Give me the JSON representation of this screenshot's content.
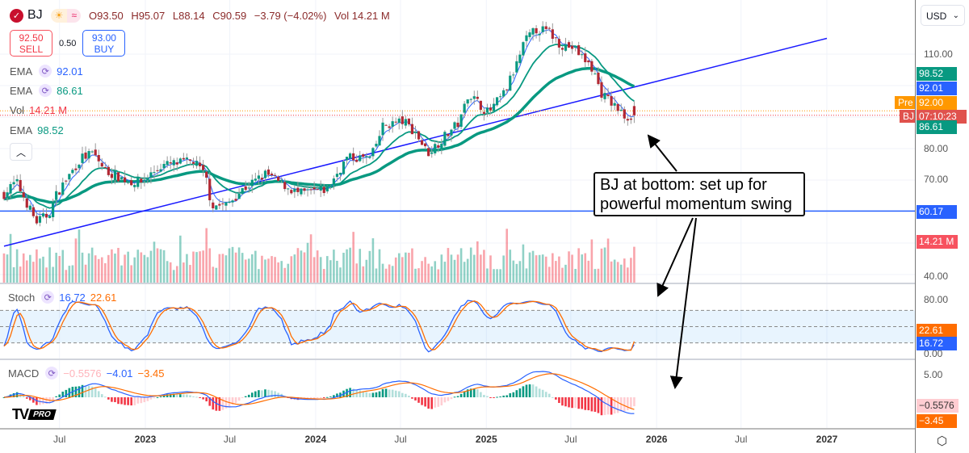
{
  "header": {
    "symbol": "BJ",
    "logo_icon": "check-circle-icon",
    "badges": [
      "☀",
      "≈"
    ],
    "open": "O93.50",
    "high": "H95.07",
    "low": "L88.14",
    "close": "C90.59",
    "change": "−3.79 (−4.02%)",
    "volume": "Vol 14.21 M"
  },
  "trade": {
    "sell_price": "92.50",
    "sell_label": "SELL",
    "spread": "0.50",
    "buy_price": "93.00",
    "buy_label": "BUY"
  },
  "legend": {
    "ema1_label": "EMA",
    "ema1_value": "92.01",
    "ema2_label": "EMA",
    "ema2_value": "86.61",
    "vol_label": "Vol",
    "vol_value": "14.21 M",
    "ema3_label": "EMA",
    "ema3_value": "98.52",
    "stoch_label": "Stoch",
    "stoch_k": "16.72",
    "stoch_d": "22.61",
    "macd_label": "MACD",
    "macd_hist": "−0.5576",
    "macd_line": "−4.01",
    "macd_signal": "−3.45"
  },
  "axis": {
    "currency": "USD",
    "price_ticks": [
      "110.00",
      "80.00",
      "70.00",
      "40.00"
    ],
    "stoch_ticks": [
      "80.00",
      "0.00"
    ],
    "macd_ticks": [
      "5.00"
    ],
    "labels": {
      "ema3": "98.52",
      "ema1": "92.01",
      "pre_tag": "Pre",
      "pre": "92.00",
      "bj_tag": "BJ",
      "countdown": "07:10:23",
      "ema2": "86.61",
      "hline": "60.17",
      "volume": "14.21 M",
      "stoch_d": "22.61",
      "stoch_k": "16.72",
      "macd_hist": "−0.5576",
      "macd_signal": "−3.45"
    },
    "time_labels": [
      {
        "text": "Jul",
        "year": false,
        "date": "2022-07-01"
      },
      {
        "text": "2023",
        "year": true,
        "date": "2023-01-01"
      },
      {
        "text": "Jul",
        "year": false,
        "date": "2023-07-01"
      },
      {
        "text": "2024",
        "year": true,
        "date": "2024-01-01"
      },
      {
        "text": "Jul",
        "year": false,
        "date": "2024-07-01"
      },
      {
        "text": "2025",
        "year": true,
        "date": "2025-01-01"
      },
      {
        "text": "Jul",
        "year": false,
        "date": "2025-07-01"
      },
      {
        "text": "2026",
        "year": true,
        "date": "2026-01-01"
      },
      {
        "text": "Jul",
        "year": false,
        "date": "2026-07-01"
      },
      {
        "text": "2027",
        "year": true,
        "date": "2027-01-01"
      }
    ]
  },
  "annotation": {
    "line1": "BJ at bottom: set up for",
    "line2": "powerful momentum swing"
  },
  "watermark": {
    "mark": "TV",
    "pro": "PRO"
  },
  "colors": {
    "up": "#089981",
    "down": "#b22833",
    "ema_fast": "#2962ff",
    "ema_mid": "#089981",
    "trend_line": "#1a1aff",
    "hline": "#2962ff",
    "stoch_k": "#2962ff",
    "stoch_d": "#ff6d00",
    "macd_line": "#2962ff",
    "macd_signal": "#ff6d00"
  },
  "chart_data": {
    "type": "candlestick",
    "interval": "weekly",
    "y_scale": "linear",
    "ylim": [
      40,
      118
    ],
    "last_candle": {
      "open": 93.5,
      "high": 95.07,
      "low": 88.14,
      "close": 90.59,
      "volume_m": 14.21
    },
    "close_path": [
      [
        "2022-03-04",
        65.6
      ],
      [
        "2022-03-30",
        69.5
      ],
      [
        "2022-05-12",
        56.7
      ],
      [
        "2022-06-07",
        59
      ],
      [
        "2022-06-25",
        65.6
      ],
      [
        "2022-08-16",
        77
      ],
      [
        "2022-09-11",
        78.5
      ],
      [
        "2022-10-07",
        73
      ],
      [
        "2022-11-27",
        69.5
      ],
      [
        "2022-12-23",
        69.5
      ],
      [
        "2023-02-05",
        74.6
      ],
      [
        "2023-04-15",
        76
      ],
      [
        "2023-05-11",
        70.8
      ],
      [
        "2023-05-23",
        62
      ],
      [
        "2023-06-23",
        62
      ],
      [
        "2023-07-28",
        67
      ],
      [
        "2023-09-17",
        72
      ],
      [
        "2023-10-13",
        69.5
      ],
      [
        "2023-11-26",
        65.6
      ],
      [
        "2024-01-25",
        67
      ],
      [
        "2024-03-08",
        77
      ],
      [
        "2024-04-29",
        77
      ],
      [
        "2024-05-25",
        87.4
      ],
      [
        "2024-07-08",
        88.7
      ],
      [
        "2024-08-03",
        84.9
      ],
      [
        "2024-08-28",
        78.5
      ],
      [
        "2024-09-23",
        82.3
      ],
      [
        "2024-11-06",
        88.7
      ],
      [
        "2024-11-23",
        97.7
      ],
      [
        "2024-12-19",
        93.8
      ],
      [
        "2025-01-05",
        91.3
      ],
      [
        "2025-02-09",
        97.7
      ],
      [
        "2025-03-07",
        106.7
      ],
      [
        "2025-03-24",
        114
      ],
      [
        "2025-04-19",
        118
      ],
      [
        "2025-05-15",
        117
      ],
      [
        "2025-06-10",
        113
      ],
      [
        "2025-07-06",
        112
      ],
      [
        "2025-08-01",
        108
      ],
      [
        "2025-08-18",
        105
      ],
      [
        "2025-09-04",
        97.7
      ],
      [
        "2025-10-09",
        92.6
      ],
      [
        "2025-10-26",
        90
      ],
      [
        "2025-11-19",
        90.59
      ]
    ],
    "indicators": {
      "ema_values": [
        92.01,
        86.61,
        98.52
      ],
      "volume_last_m": 14.21,
      "stoch": {
        "k": 16.72,
        "d": 22.61,
        "bands": [
          80,
          50,
          20
        ],
        "ylim": [
          0,
          100
        ]
      },
      "macd": {
        "histogram": -0.5576,
        "macd": -4.01,
        "signal": -3.45
      }
    },
    "trend_line": {
      "from": [
        "2022-03-04",
        49
      ],
      "to": [
        "2027-01-01",
        115
      ]
    },
    "horizontal_line": 60.17,
    "pre_market": 92.0
  }
}
